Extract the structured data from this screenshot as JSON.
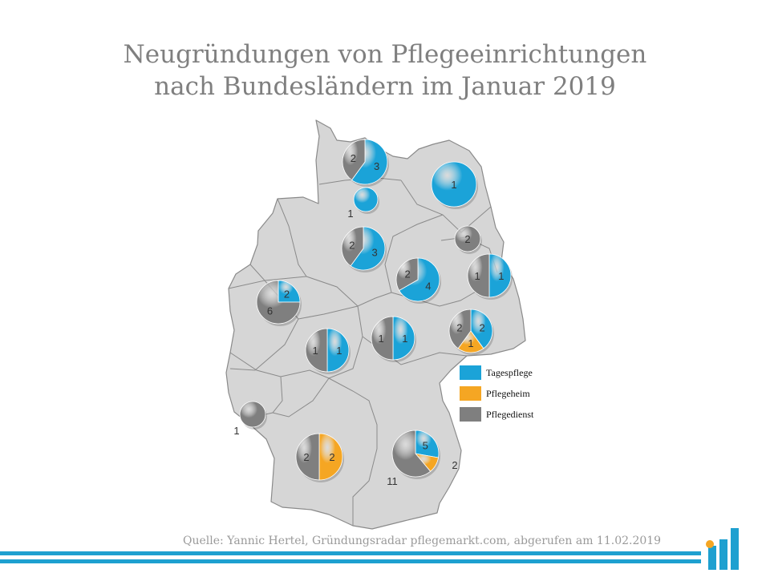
{
  "title": {
    "line1": "Neugründungen von Pflegeeinrichtungen",
    "line2": "nach Bundesländern im Januar 2019"
  },
  "legend": [
    {
      "label": "Tagespflege",
      "color": "#1ba3d8"
    },
    {
      "label": "Pflegeheim",
      "color": "#f5a623"
    },
    {
      "label": "Pflegedienst",
      "color": "#7f7f7f"
    }
  ],
  "source": "Quelle: Yannic Hertel, Gründungsradar pflegemarkt.com, abgerufen am 11.02.2019",
  "colors": {
    "tagespflege": "#1ba3d8",
    "pflegeheim": "#f5a623",
    "pflegedienst": "#7f7f7f",
    "map_fill": "#d6d6d6",
    "map_border": "#8a8a8a",
    "accent_bar": "#1ea0d0"
  },
  "chart_data": {
    "type": "pie",
    "categories": [
      "Tagespflege",
      "Pflegeheim",
      "Pflegedienst"
    ],
    "pies": [
      {
        "values": [
          3,
          0,
          2
        ]
      },
      {
        "values": [
          1,
          0,
          0
        ]
      },
      {
        "values": [
          1,
          0,
          0
        ]
      },
      {
        "values": [
          3,
          0,
          2
        ]
      },
      {
        "values": [
          0,
          0,
          2
        ]
      },
      {
        "values": [
          4,
          0,
          2
        ]
      },
      {
        "values": [
          1,
          0,
          1
        ]
      },
      {
        "values": [
          2,
          0,
          6
        ]
      },
      {
        "values": [
          1,
          0,
          1
        ]
      },
      {
        "values": [
          1,
          0,
          1
        ]
      },
      {
        "values": [
          2,
          1,
          2
        ]
      },
      {
        "values": [
          0,
          0,
          1
        ]
      },
      {
        "values": [
          0,
          2,
          2
        ]
      },
      {
        "values": [
          5,
          2,
          11
        ]
      }
    ]
  }
}
